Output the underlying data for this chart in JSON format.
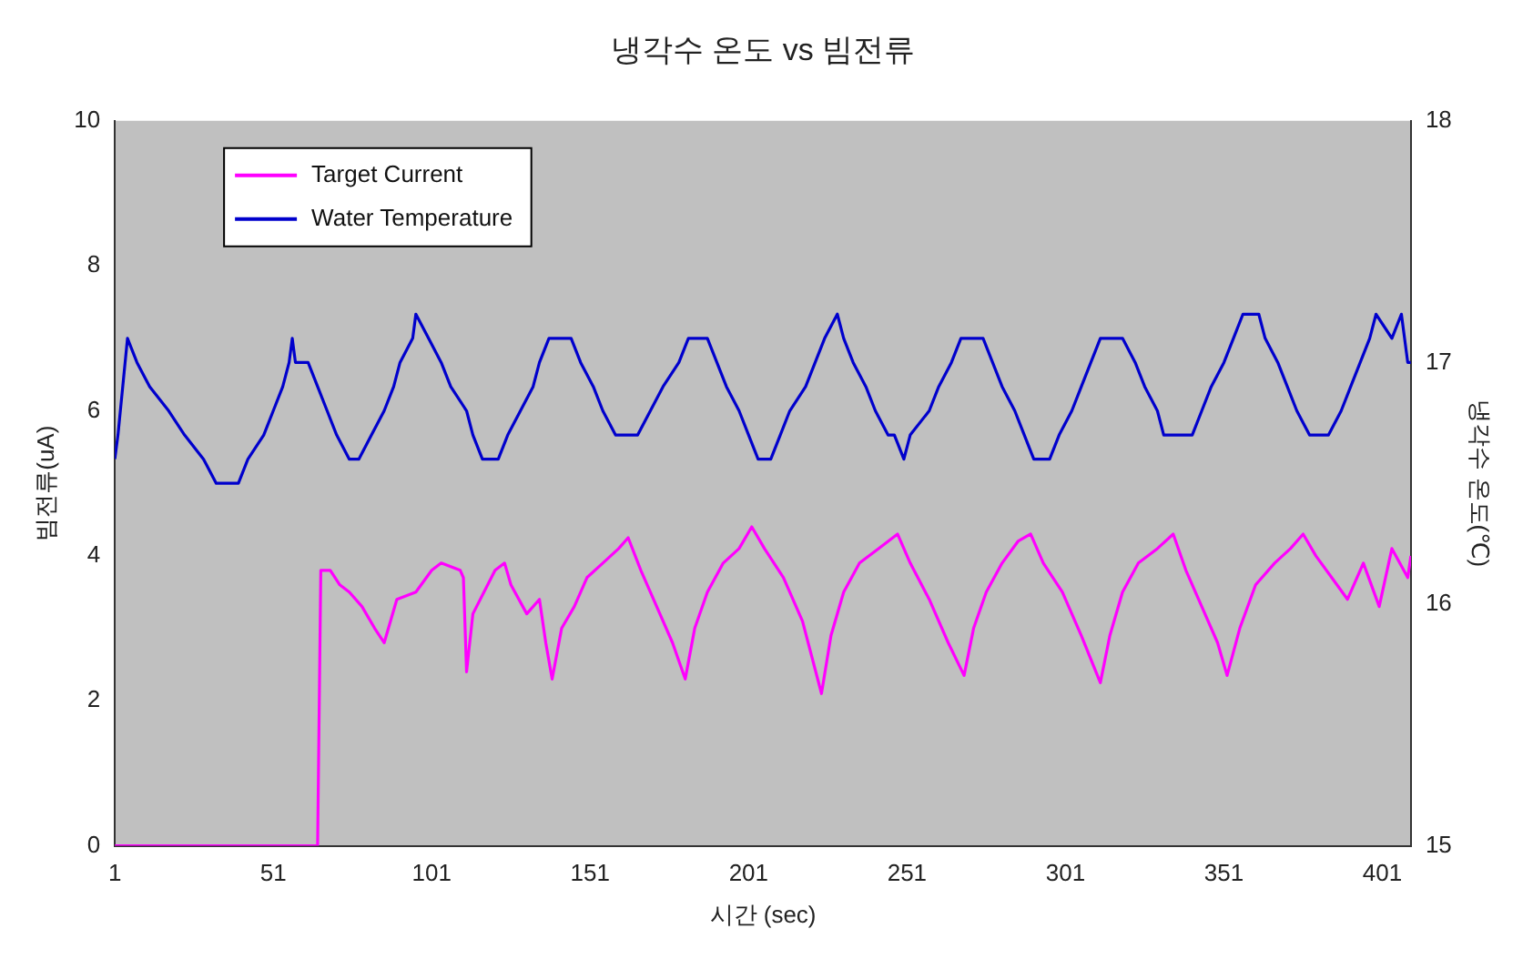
{
  "chart_data": {
    "type": "line",
    "title": "냉각수 온도 vs 빔전류",
    "xlabel": "시간 (sec)",
    "ylabel": "빔전류(uA)",
    "y2label": "냉각수 온도(℃)",
    "xlim": [
      1,
      410
    ],
    "xticks": [
      1,
      51,
      101,
      151,
      201,
      251,
      301,
      351,
      401
    ],
    "ylim": [
      0,
      10
    ],
    "yticks": [
      0,
      2,
      4,
      6,
      8,
      10
    ],
    "y2lim": [
      15,
      18
    ],
    "y2ticks": [
      15,
      16,
      17,
      18
    ],
    "grid": false,
    "legend": "top left",
    "marker": "none",
    "line_style": "solid",
    "series": [
      {
        "name": "Target Current",
        "color": "#ff00ff",
        "x": [
          1,
          65,
          66,
          69,
          72,
          75,
          79,
          83,
          86,
          90,
          96,
          101,
          104,
          110,
          111,
          112,
          114,
          121,
          124,
          126,
          131,
          135,
          137,
          139,
          142,
          146,
          150,
          155,
          160,
          163,
          167,
          172,
          177,
          181,
          184,
          188,
          193,
          198,
          202,
          206,
          212,
          218,
          224,
          227,
          231,
          236,
          242,
          248,
          252,
          258,
          264,
          269,
          272,
          276,
          281,
          286,
          290,
          294,
          300,
          306,
          312,
          315,
          319,
          324,
          330,
          335,
          339,
          344,
          349,
          352,
          356,
          361,
          367,
          372,
          376,
          380,
          385,
          390,
          395,
          400,
          404,
          409,
          410
        ],
        "values": [
          0,
          0,
          3.8,
          3.8,
          3.6,
          3.5,
          3.3,
          3.0,
          2.8,
          3.4,
          3.5,
          3.8,
          3.9,
          3.8,
          3.7,
          2.4,
          3.2,
          3.8,
          3.9,
          3.6,
          3.2,
          3.4,
          2.8,
          2.3,
          3.0,
          3.3,
          3.7,
          3.9,
          4.1,
          4.25,
          3.8,
          3.3,
          2.8,
          2.3,
          3.0,
          3.5,
          3.9,
          4.1,
          4.4,
          4.1,
          3.7,
          3.1,
          2.1,
          2.9,
          3.5,
          3.9,
          4.1,
          4.3,
          3.9,
          3.4,
          2.8,
          2.35,
          3.0,
          3.5,
          3.9,
          4.2,
          4.3,
          3.9,
          3.5,
          2.9,
          2.25,
          2.9,
          3.5,
          3.9,
          4.1,
          4.3,
          3.8,
          3.3,
          2.8,
          2.35,
          3.0,
          3.6,
          3.9,
          4.1,
          4.3,
          4.0,
          3.7,
          3.4,
          3.9,
          3.3,
          4.1,
          3.7,
          4.0
        ]
      },
      {
        "name": "Water Temperature",
        "color": "#0000cc",
        "axis": "y2",
        "x": [
          1,
          2,
          5,
          8,
          12,
          18,
          23,
          29,
          33,
          40,
          43,
          48,
          51,
          54,
          56,
          57,
          58,
          62,
          65,
          68,
          71,
          75,
          78,
          82,
          86,
          89,
          91,
          95,
          96,
          100,
          104,
          107,
          112,
          114,
          117,
          122,
          125,
          129,
          133,
          135,
          138,
          145,
          148,
          152,
          155,
          159,
          166,
          170,
          174,
          179,
          182,
          188,
          191,
          194,
          198,
          201,
          204,
          208,
          211,
          214,
          219,
          222,
          225,
          229,
          231,
          234,
          238,
          241,
          245,
          247,
          250,
          252,
          258,
          261,
          265,
          268,
          275,
          278,
          281,
          285,
          288,
          291,
          296,
          299,
          303,
          306,
          309,
          312,
          319,
          323,
          326,
          330,
          332,
          341,
          344,
          347,
          351,
          354,
          357,
          362,
          364,
          368,
          371,
          374,
          378,
          384,
          388,
          391,
          394,
          397,
          399,
          404,
          407,
          409,
          410
        ],
        "values": [
          16.6,
          16.7,
          17.1,
          17.0,
          16.9,
          16.8,
          16.7,
          16.6,
          16.5,
          16.5,
          16.6,
          16.7,
          16.8,
          16.9,
          17.0,
          17.1,
          17.0,
          17.0,
          16.9,
          16.8,
          16.7,
          16.6,
          16.6,
          16.7,
          16.8,
          16.9,
          17.0,
          17.1,
          17.2,
          17.1,
          17.0,
          16.9,
          16.8,
          16.7,
          16.6,
          16.6,
          16.7,
          16.8,
          16.9,
          17.0,
          17.1,
          17.1,
          17.0,
          16.9,
          16.8,
          16.7,
          16.7,
          16.8,
          16.9,
          17.0,
          17.1,
          17.1,
          17.0,
          16.9,
          16.8,
          16.7,
          16.6,
          16.6,
          16.7,
          16.8,
          16.9,
          17.0,
          17.1,
          17.2,
          17.1,
          17.0,
          16.9,
          16.8,
          16.7,
          16.7,
          16.6,
          16.7,
          16.8,
          16.9,
          17.0,
          17.1,
          17.1,
          17.0,
          16.9,
          16.8,
          16.7,
          16.6,
          16.6,
          16.7,
          16.8,
          16.9,
          17.0,
          17.1,
          17.1,
          17.0,
          16.9,
          16.8,
          16.7,
          16.7,
          16.8,
          16.9,
          17.0,
          17.1,
          17.2,
          17.2,
          17.1,
          17.0,
          16.9,
          16.8,
          16.7,
          16.7,
          16.8,
          16.9,
          17.0,
          17.1,
          17.2,
          17.1,
          17.2,
          17.0,
          17.0
        ]
      }
    ]
  }
}
